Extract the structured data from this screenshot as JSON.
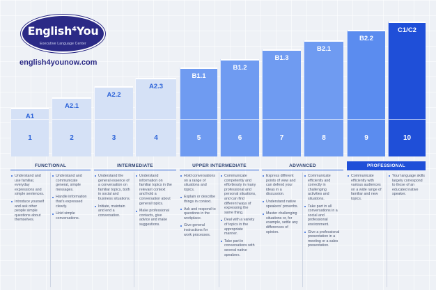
{
  "logo": {
    "text": "English⁴You",
    "tagline": "Executive Language Center"
  },
  "site_url": "english4younow.com",
  "levels": [
    {
      "label": "A1",
      "number": "1",
      "bg": "#d5e1f6",
      "fg": "#2b62d8"
    },
    {
      "label": "A2.1",
      "number": "2",
      "bg": "#d5e1f6",
      "fg": "#2b62d8"
    },
    {
      "label": "A2.2",
      "number": "3",
      "bg": "#d5e1f6",
      "fg": "#2b62d8"
    },
    {
      "label": "A2.3",
      "number": "4",
      "bg": "#d5e1f6",
      "fg": "#2b62d8"
    },
    {
      "label": "B1.1",
      "number": "5",
      "bg": "#6f9bf1",
      "fg": "#ffffff"
    },
    {
      "label": "B1.2",
      "number": "6",
      "bg": "#6f9bf1",
      "fg": "#ffffff"
    },
    {
      "label": "B1.3",
      "number": "7",
      "bg": "#6f9bf1",
      "fg": "#ffffff"
    },
    {
      "label": "B2.1",
      "number": "8",
      "bg": "#6f9bf1",
      "fg": "#ffffff"
    },
    {
      "label": "B2.2",
      "number": "9",
      "bg": "#5b8cef",
      "fg": "#ffffff"
    },
    {
      "label": "C1/C2",
      "number": "10",
      "bg": "#1f4fd8",
      "fg": "#ffffff"
    }
  ],
  "bands": [
    {
      "label": "FUNCTIONAL",
      "dark": false
    },
    {
      "label": "INTERMEDIATE",
      "dark": false
    },
    {
      "label": "UPPER INTERMEDIATE",
      "dark": false
    },
    {
      "label": "ADVANCED",
      "dark": false
    },
    {
      "label": "PROFESSIONAL",
      "dark": true
    }
  ],
  "descriptions": [
    [
      "Understand and use familiar, everyday expressions and simple sentences.",
      "Introduce yourself and ask other people simple questions about themselves."
    ],
    [
      "Understand and communicate general, simple messages.",
      "Handle information that's expressed clearly.",
      "Hold simple conversations."
    ],
    [
      "Understand the general essence of a conversation on familiar topics, both in social and business situations.",
      "Initiate, maintain and end a conversation."
    ],
    [
      "Understand information on familiar topics in the relevant context and hold a conversation about general topics.",
      "Make professional contacts, give advice and make suggestions."
    ],
    [
      "Hold conversations on a range of situations and topics.",
      "Explain or describe things in context.",
      "Ask and respond to questions in the workplace.",
      "Give general instructions for work processes."
    ],
    [
      "Communicate competently and effortlessly in many professional and personal situations, and can find different ways of expressing the same thing.",
      "Deal with a variety of topics in the appropriate manner.",
      "Take part in conversations with several native speakers."
    ],
    [
      "Express different points of view and can defend your ideas in a discussion.",
      "Understand native speakers' proverbs.",
      "Master challenging situations or, for example, settle any differences of opinion."
    ],
    [
      "Communicate efficiently and correctly in challenging activities and situations.",
      "Take part in all conversations in a social and professional environment.",
      "Give a professional presentation in a meeting or a sales presentation."
    ],
    [
      "Communicate efficiently with various audiences on a wide range of familiar and new topics."
    ],
    [
      "Your language skills largely correspond to those of an educated native speaker."
    ]
  ]
}
